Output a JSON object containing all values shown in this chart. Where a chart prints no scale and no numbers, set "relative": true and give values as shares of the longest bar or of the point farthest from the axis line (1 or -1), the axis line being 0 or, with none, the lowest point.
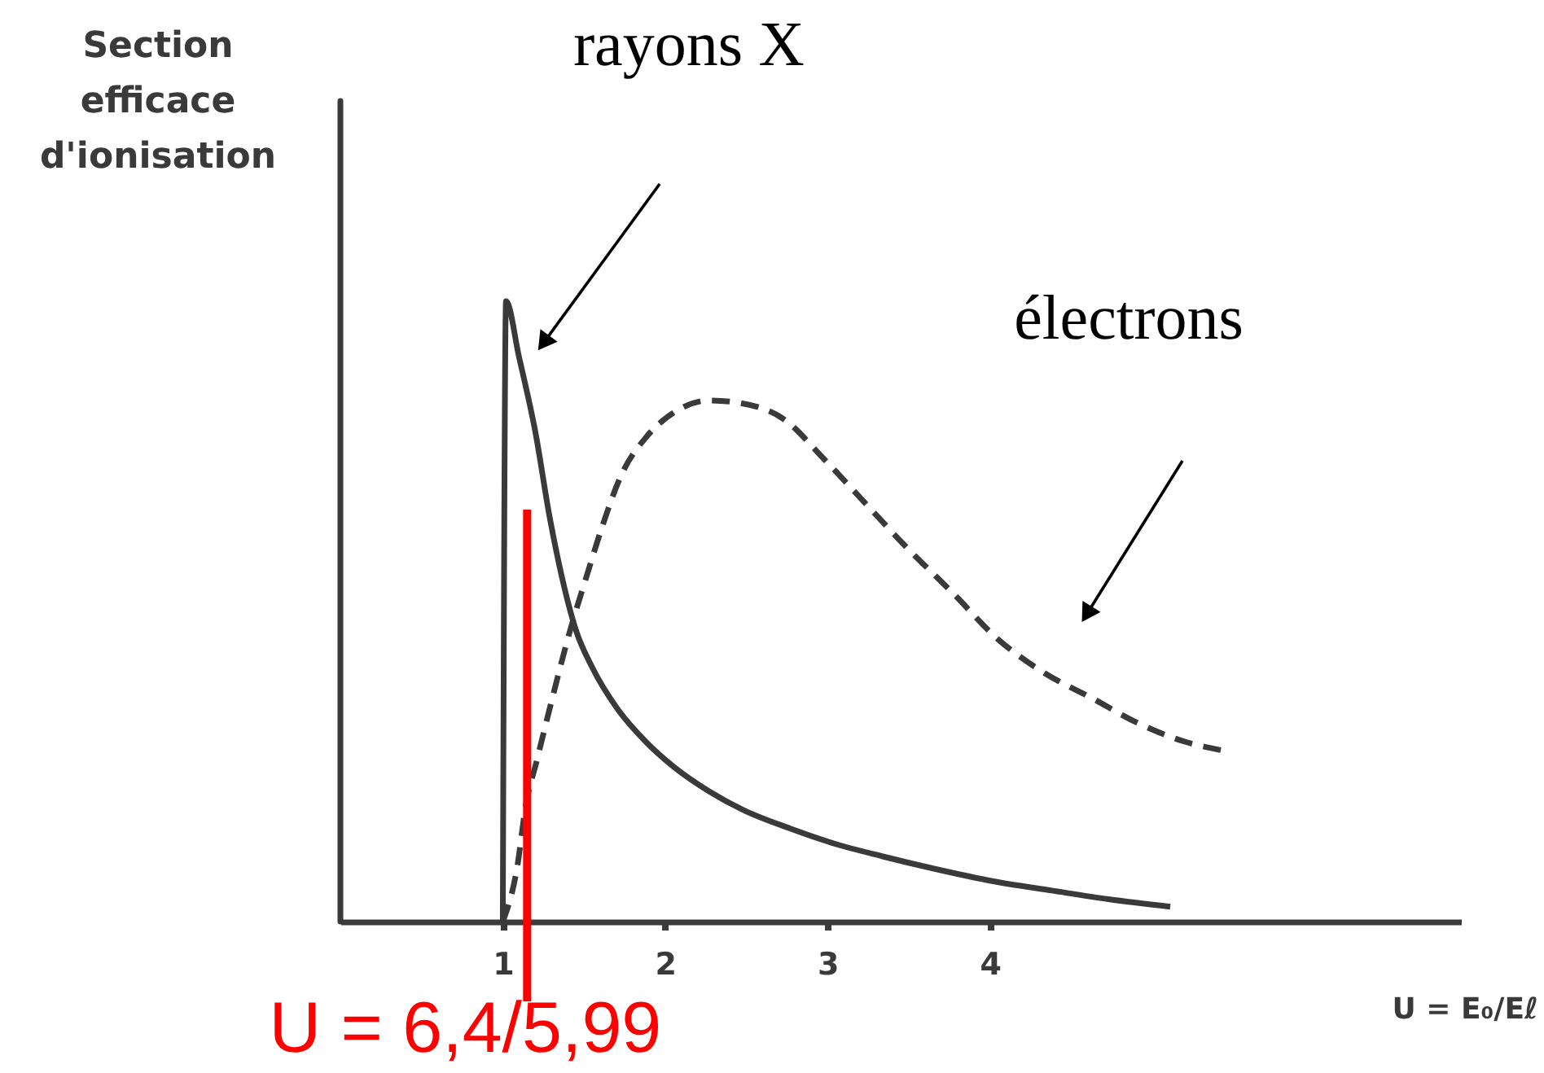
{
  "chart_data": {
    "type": "line",
    "relative": true,
    "xlabel": "U = E₀/Eℓ",
    "ylabel": "Section efficace d'ionisation",
    "xlim": [
      0,
      6.9
    ],
    "xticks": [
      1,
      2,
      3,
      4
    ],
    "tick_labels": "x",
    "series": [
      {
        "color": "#3a3a3a",
        "line_style": "solid",
        "x": [
          1.0,
          1.02,
          1.1,
          1.2,
          1.29,
          1.36,
          1.45,
          1.55,
          1.7,
          1.88,
          2.05,
          2.27,
          2.48,
          2.77,
          3.05,
          3.34,
          3.66,
          4.02,
          4.38,
          4.73,
          5.11
        ],
        "values": [
          0,
          1,
          0.91,
          0.79,
          0.65,
          0.56,
          0.47,
          0.41,
          0.345,
          0.29,
          0.25,
          0.21,
          0.18,
          0.15,
          0.125,
          0.105,
          0.085,
          0.065,
          0.05,
          0.036,
          0.024
        ]
      },
      {
        "color": "#3a3a3a",
        "line_style": "dashed",
        "x": [
          1.0,
          1.09,
          1.14,
          1.21,
          1.3,
          1.41,
          1.52,
          1.61,
          1.73,
          1.88,
          2.05,
          2.27,
          2.48,
          2.73,
          2.98,
          3.23,
          3.48,
          3.77,
          4.05,
          4.34,
          4.63,
          4.91,
          5.2,
          5.45
        ],
        "values": [
          0,
          0.09,
          0.185,
          0.26,
          0.355,
          0.465,
          0.56,
          0.635,
          0.72,
          0.78,
          0.82,
          0.84,
          0.835,
          0.81,
          0.745,
          0.675,
          0.605,
          0.53,
          0.455,
          0.4,
          0.36,
          0.32,
          0.29,
          0.275
        ]
      }
    ],
    "annotations": [
      "rayons X",
      "électrons",
      "U = 6,4/5,99"
    ],
    "ref_lines": [
      {
        "axis": "x",
        "value": 1.15,
        "color": "#ff0000"
      }
    ]
  }
}
